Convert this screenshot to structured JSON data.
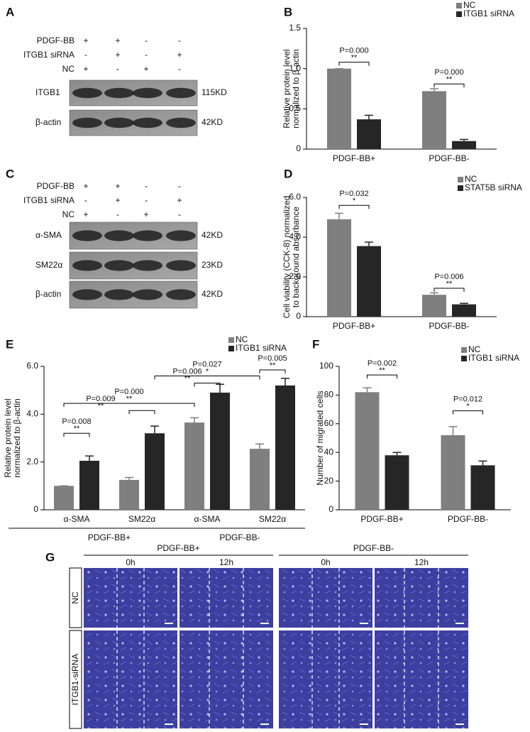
{
  "blot_a": {
    "label": "A",
    "conditions": [
      {
        "name": "PDGF-BB",
        "signs": [
          "+",
          "+",
          "-",
          "-"
        ]
      },
      {
        "name": "ITGB1 siRNA",
        "signs": [
          "-",
          "+",
          "-",
          "+"
        ]
      },
      {
        "name": "NC",
        "signs": [
          "+",
          "-",
          "+",
          "-"
        ]
      }
    ],
    "bands": [
      {
        "protein": "ITGB1",
        "size": "115KD"
      },
      {
        "protein": "β-actin",
        "size": "42KD"
      }
    ]
  },
  "blot_c": {
    "label": "C",
    "conditions": [
      {
        "name": "PDGF-BB",
        "signs": [
          "+",
          "+",
          "-",
          "-"
        ]
      },
      {
        "name": "ITGB1 siRNA",
        "signs": [
          "-",
          "+",
          "-",
          "+"
        ]
      },
      {
        "name": "NC",
        "signs": [
          "+",
          "-",
          "+",
          "-"
        ]
      }
    ],
    "bands": [
      {
        "protein": "α-SMA",
        "size": "42KD"
      },
      {
        "protein": "SM22α",
        "size": "23KD"
      },
      {
        "protein": "β-actin",
        "size": "42KD"
      }
    ]
  },
  "chart_data": [
    {
      "type": "bar",
      "panel_label": "B",
      "ylabel": [
        "Relative protein level",
        "normalized to β-actin"
      ],
      "categories": [
        "PDGF-BB+",
        "PDGF-BB-"
      ],
      "series": [
        {
          "name": "NC",
          "color": "#7f7f7f",
          "values": [
            1.0,
            0.72
          ],
          "errors": [
            0,
            0.03
          ]
        },
        {
          "name": "ITGB1 siRNA",
          "color": "#262626",
          "values": [
            0.37,
            0.1
          ],
          "errors": [
            0.05,
            0.02
          ]
        }
      ],
      "ylim": [
        0,
        1.5
      ],
      "yticks": [
        0,
        {
          "value": 0.5,
          "label": "0.5"
        },
        {
          "value": 1,
          "label": "1.0"
        },
        {
          "value": 1.5,
          "label": "1.5"
        }
      ],
      "annotations": [
        {
          "p": "P=0.000",
          "stars": "**"
        },
        {
          "p": "P=0.000",
          "stars": "**"
        }
      ]
    },
    {
      "type": "bar",
      "panel_label": "D",
      "ylabel": [
        "Cell viability (CCK-8) normalized",
        "to background absorbance"
      ],
      "categories": [
        "PDGF-BB+",
        "PDGF-BB-"
      ],
      "series": [
        {
          "name": "NC",
          "color": "#7f7f7f",
          "values": [
            4.9,
            1.1
          ],
          "errors": [
            0.3,
            0.1
          ]
        },
        {
          "name": "STAT5B siRNA",
          "color": "#262626",
          "values": [
            3.55,
            0.62
          ],
          "errors": [
            0.2,
            0.05
          ]
        }
      ],
      "ylim": [
        0,
        6
      ],
      "yticks": [
        0,
        {
          "value": 2,
          "label": "2.0"
        },
        {
          "value": 4,
          "label": "4.0"
        },
        {
          "value": 6,
          "label": "6.0"
        }
      ],
      "annotations": [
        {
          "p": "P=0.032",
          "stars": "*"
        },
        {
          "p": "P=0.006",
          "stars": "**"
        }
      ]
    },
    {
      "type": "bar",
      "panel_label": "E",
      "ylabel": [
        "Relative protein level",
        "normalized to β-actin"
      ],
      "categories": [
        "α-SMA",
        "SM22α",
        "α-SMA",
        "SM22α"
      ],
      "groups": [
        "PDGF-BB+",
        "PDGF-BB-"
      ],
      "series": [
        {
          "name": "NC",
          "color": "#7f7f7f",
          "values": [
            1.0,
            1.25,
            3.65,
            2.55
          ],
          "errors": [
            0,
            0.1,
            0.2,
            0.2
          ]
        },
        {
          "name": "ITGB1 siRNA",
          "color": "#262626",
          "values": [
            2.05,
            3.2,
            4.9,
            5.2
          ],
          "errors": [
            0.2,
            0.3,
            0.35,
            0.3
          ]
        }
      ],
      "ylim": [
        0,
        6
      ],
      "yticks": [
        0,
        {
          "value": 2,
          "label": "2.0"
        },
        {
          "value": 4,
          "label": "4.0"
        },
        {
          "value": 6,
          "label": "6.0"
        }
      ],
      "annotations": [
        {
          "p": "P=0.008",
          "stars": "**"
        },
        {
          "p": "P=0.009",
          "stars": "**"
        },
        {
          "p": "P=0.000",
          "stars": "**"
        },
        {
          "p": "P=0.006",
          "stars": "**"
        },
        {
          "p": "P=0.027",
          "stars": "*"
        },
        {
          "p": "P=0.005",
          "stars": "**"
        }
      ]
    },
    {
      "type": "bar",
      "panel_label": "F",
      "ylabel": [
        "Number of migrated cells"
      ],
      "categories": [
        "PDGF-BB+",
        "PDGF-BB-"
      ],
      "series": [
        {
          "name": "NC",
          "color": "#7f7f7f",
          "values": [
            82,
            52
          ],
          "errors": [
            3,
            6
          ]
        },
        {
          "name": "ITGB1 siRNA",
          "color": "#262626",
          "values": [
            38,
            31
          ],
          "errors": [
            2,
            3
          ]
        }
      ],
      "ylim": [
        0,
        100
      ],
      "yticks": [
        0,
        20,
        40,
        60,
        80,
        100
      ],
      "annotations": [
        {
          "p": "P=0.002",
          "stars": "**"
        },
        {
          "p": "P=0.012",
          "stars": "*"
        }
      ]
    }
  ],
  "migration": {
    "label": "G",
    "groups": [
      "PDGF-BB+",
      "PDGF-BB-"
    ],
    "times": [
      "0h",
      "12h"
    ],
    "rows": [
      "NC",
      "ITGB1-siRNA"
    ]
  }
}
